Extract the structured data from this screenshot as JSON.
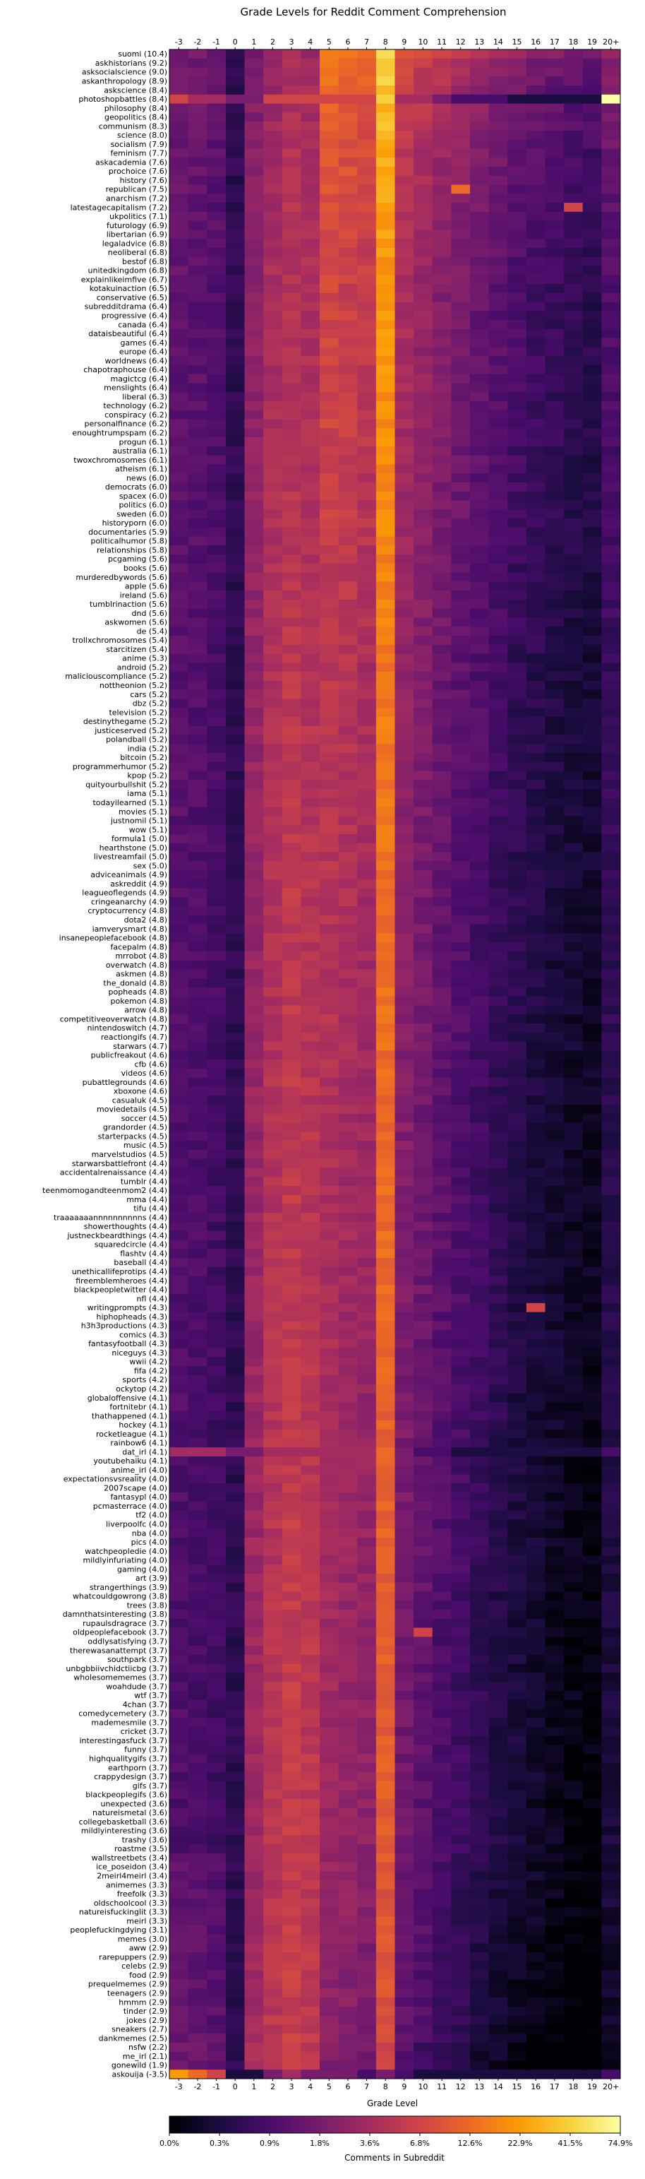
{
  "chart_data": {
    "type": "heatmap",
    "title": "Grade Levels for Reddit Comment Comprehension",
    "xlabel": "Grade Level",
    "colorbar_label": "Comments in Subreddit",
    "x_categories": [
      "-3",
      "-2",
      "-1",
      "0",
      "1",
      "2",
      "3",
      "4",
      "5",
      "6",
      "7",
      "8",
      "9",
      "10",
      "11",
      "12",
      "13",
      "14",
      "15",
      "16",
      "17",
      "18",
      "19",
      "20+"
    ],
    "colorbar_ticks": [
      "0.0%",
      "0.3%",
      "0.9%",
      "1.8%",
      "3.6%",
      "6.8%",
      "12.6%",
      "22.9%",
      "41.5%",
      "74.9%"
    ],
    "colormap": [
      "#000004",
      "#1b0c41",
      "#4a0c6b",
      "#781c6d",
      "#a52c60",
      "#cf4446",
      "#ed6925",
      "#fb9b06",
      "#f7d13d",
      "#fcffa4"
    ],
    "value_scale": "color index 0-9 aligned with colorbar ticks",
    "rows": [
      "suomi (10.4)",
      "askhistorians (9.2)",
      "asksocialscience (9.0)",
      "askanthropology (8.9)",
      "askscience (8.4)",
      "photoshopbattles (8.4)",
      "philosophy (8.4)",
      "geopolitics (8.4)",
      "communism (8.3)",
      "science (8.0)",
      "socialism (7.9)",
      "feminism (7.7)",
      "askacademia (7.6)",
      "prochoice (7.6)",
      "history (7.6)",
      "republican (7.5)",
      "anarchism (7.2)",
      "latestagecapitalism (7.2)",
      "ukpolitics (7.1)",
      "futurology (6.9)",
      "libertarian (6.9)",
      "legaladvice (6.8)",
      "neoliberal (6.8)",
      "bestof (6.8)",
      "unitedkingdom (6.8)",
      "explainlikeimfive (6.7)",
      "kotakuinaction (6.5)",
      "conservative (6.5)",
      "subredditdrama (6.4)",
      "progressive (6.4)",
      "canada (6.4)",
      "dataisbeautiful (6.4)",
      "games (6.4)",
      "europe (6.4)",
      "worldnews (6.4)",
      "chapotraphouse (6.4)",
      "magictcg (6.4)",
      "menslights (6.4)",
      "liberal (6.3)",
      "technology (6.2)",
      "conspiracy (6.2)",
      "personalfinance (6.2)",
      "enoughtrumpspam (6.2)",
      "progun (6.1)",
      "australia (6.1)",
      "twoxchromosomes (6.1)",
      "atheism (6.1)",
      "news (6.0)",
      "democrats (6.0)",
      "spacex (6.0)",
      "politics (6.0)",
      "sweden (6.0)",
      "historyporn (6.0)",
      "documentaries (5.9)",
      "politicalhumor (5.8)",
      "relationships (5.8)",
      "pcgaming (5.6)",
      "books (5.6)",
      "murderedbywords (5.6)",
      "apple (5.6)",
      "ireland (5.6)",
      "tumblrinaction (5.6)",
      "dnd (5.6)",
      "askwomen (5.6)",
      "de (5.4)",
      "trollxchromosomes (5.4)",
      "starcitizen (5.4)",
      "anime (5.3)",
      "android (5.2)",
      "maliciouscompliance (5.2)",
      "nottheonion (5.2)",
      "cars (5.2)",
      "dbz (5.2)",
      "television (5.2)",
      "destinythegame (5.2)",
      "justiceserved (5.2)",
      "polandball (5.2)",
      "india (5.2)",
      "bitcoin (5.2)",
      "programmerhumor (5.2)",
      "kpop (5.2)",
      "quityourbullshit (5.2)",
      "iama (5.1)",
      "todayilearned (5.1)",
      "movies (5.1)",
      "justnomil (5.1)",
      "wow (5.1)",
      "formula1 (5.0)",
      "hearthstone (5.0)",
      "livestreamfail (5.0)",
      "sex (5.0)",
      "adviceanimals (4.9)",
      "askreddit (4.9)",
      "leagueoflegends (4.9)",
      "cringeanarchy (4.9)",
      "cryptocurrency (4.8)",
      "dota2 (4.8)",
      "iamverysmart (4.8)",
      "insanepeoplefacebook (4.8)",
      "facepalm (4.8)",
      "mrrobot (4.8)",
      "overwatch (4.8)",
      "askmen (4.8)",
      "the_donald (4.8)",
      "popheads (4.8)",
      "pokemon (4.8)",
      "arrow (4.8)",
      "competitiveoverwatch (4.8)",
      "nintendoswitch (4.7)",
      "reactiongifs (4.7)",
      "starwars (4.7)",
      "publicfreakout (4.6)",
      "cfb (4.6)",
      "videos (4.6)",
      "pubattlegrounds (4.6)",
      "xboxone (4.6)",
      "casualuk (4.5)",
      "moviedetails (4.5)",
      "soccer (4.5)",
      "grandorder (4.5)",
      "starterpacks (4.5)",
      "music (4.5)",
      "marvelstudios (4.5)",
      "starwarsbattlefront (4.4)",
      "accidentalrenaissance (4.4)",
      "tumblr (4.4)",
      "teenmomogandteenmom2 (4.4)",
      "mma (4.4)",
      "tifu (4.4)",
      "traaaaaaannnnnnnnnns (4.4)",
      "showerthoughts (4.4)",
      "justneckbeardthings (4.4)",
      "squaredcircle (4.4)",
      "flashtv (4.4)",
      "baseball (4.4)",
      "unethicallifeprotips (4.4)",
      "fireemblemheroes (4.4)",
      "blackpeopletwitter (4.4)",
      "nfl (4.4)",
      "writingprompts (4.3)",
      "hiphopheads (4.3)",
      "h3h3productions (4.3)",
      "comics (4.3)",
      "fantasyfootball (4.3)",
      "niceguys (4.3)",
      "wwii (4.2)",
      "fifa (4.2)",
      "sports (4.2)",
      "ockytop (4.2)",
      "globaloffensive (4.1)",
      "fortnitebr (4.1)",
      "thathappened (4.1)",
      "hockey (4.1)",
      "rocketleague (4.1)",
      "rainbow6 (4.1)",
      "dat_irl (4.1)",
      "youtubehaiku (4.1)",
      "anime_irl (4.0)",
      "expectationsvsreality (4.0)",
      "2007scape (4.0)",
      "fantasypl (4.0)",
      "pcmasterrace (4.0)",
      "tf2 (4.0)",
      "liverpoolfc (4.0)",
      "nba (4.0)",
      "pics (4.0)",
      "watchpeopledie (4.0)",
      "mildlyinfuriating (4.0)",
      "gaming (4.0)",
      "art (3.9)",
      "strangerthings (3.9)",
      "whatcouldgowrong (3.8)",
      "trees (3.8)",
      "damnthatsinteresting (3.8)",
      "rupaulsdragrace (3.7)",
      "oldpeoplefacebook (3.7)",
      "oddlysatisfying (3.7)",
      "therewasanattempt (3.7)",
      "southpark (3.7)",
      "unbgbbiivchidctiicbg (3.7)",
      "wholesomememes (3.7)",
      "woahdude (3.7)",
      "wtf (3.7)",
      "4chan (3.7)",
      "comedycemetery (3.7)",
      "mademesmile (3.7)",
      "cricket (3.7)",
      "interestingasfuck (3.7)",
      "funny (3.7)",
      "highqualitygifs (3.7)",
      "earthporn (3.7)",
      "crappydesign (3.7)",
      "gifs (3.7)",
      "blackpeoplegifs (3.6)",
      "unexpected (3.6)",
      "natureismetal (3.6)",
      "collegebasketball (3.6)",
      "mildlyinteresting (3.6)",
      "trashy (3.6)",
      "roastme (3.5)",
      "wallstreetbets (3.4)",
      "ice_poseidon (3.4)",
      "2meirl4meirl (3.4)",
      "animemes (3.3)",
      "freefolk (3.3)",
      "oldschoolcool (3.3)",
      "natureisfuckinglit (3.3)",
      "meirl (3.3)",
      "peoplefuckingdying (3.1)",
      "memes (3.0)",
      "aww (2.9)",
      "rarepuppers (2.9)",
      "celebs (2.9)",
      "food (2.9)",
      "prequelmemes (2.9)",
      "teenagers (2.9)",
      "hmmm (2.9)",
      "tinder (2.9)",
      "jokes (2.9)",
      "sneakers (2.7)",
      "dankmemes (2.5)",
      "nsfw (2.2)",
      "me_irl (2.1)",
      "gonewild (1.9)",
      "askouija (-3.5)"
    ],
    "special_rows": [
      {
        "row": "photoshopbattles (8.4)",
        "values": [
          5,
          4,
          4,
          3,
          3,
          5,
          5,
          5,
          5,
          5,
          5,
          8,
          4,
          4,
          3,
          2,
          2,
          2,
          1,
          1,
          1,
          1,
          1,
          9
        ]
      },
      {
        "row": "dat_irl (4.1)",
        "values": [
          4,
          4,
          4,
          3,
          3,
          4,
          4,
          4,
          4,
          4,
          4,
          6,
          3,
          2,
          2,
          1,
          1,
          1,
          1,
          1,
          1,
          1,
          1,
          2
        ]
      },
      {
        "row": "askouija (-3.5)",
        "values": [
          7,
          6,
          5,
          1,
          1,
          3,
          4,
          3,
          3,
          3,
          2,
          3,
          2,
          1,
          1,
          1,
          1,
          1,
          1,
          1,
          1,
          1,
          1,
          2
        ]
      }
    ],
    "notable_cells": [
      {
        "row": "republican (7.5)",
        "column": "12",
        "value": 6
      },
      {
        "row": "latestagecapitalism (7.2)",
        "column": "18",
        "value": 5
      },
      {
        "row": "writingprompts (4.3)",
        "column": "16",
        "value": 5
      },
      {
        "row": "oldpeoplefacebook (3.7)",
        "column": "10",
        "value": 5
      }
    ]
  }
}
